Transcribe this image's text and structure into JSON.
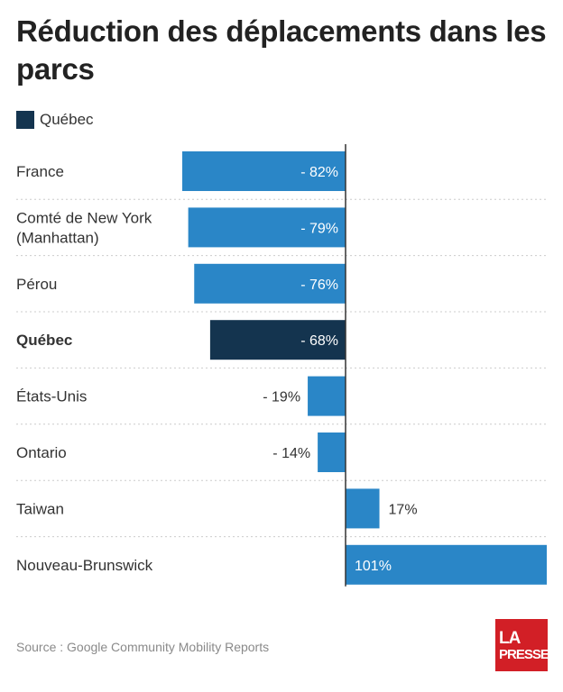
{
  "header": {
    "title": "Réduction des déplacements dans les parcs"
  },
  "legend": {
    "label": "Québec",
    "color": "#14344f"
  },
  "colors": {
    "bar": "#2a86c7",
    "highlight": "#14344f",
    "axis": "#333333",
    "separator": "#cccccc"
  },
  "chart_data": {
    "type": "bar",
    "orientation": "horizontal",
    "categories": [
      "France",
      "Comté de New York (Manhattan)",
      "Pérou",
      "Québec",
      "États-Unis",
      "Ontario",
      "Taiwan",
      "Nouveau-Brunswick"
    ],
    "values": [
      -82,
      -79,
      -76,
      -68,
      -19,
      -14,
      17,
      101
    ],
    "value_labels": [
      "- 82%",
      "- 79%",
      "- 76%",
      "- 68%",
      "- 19%",
      "- 14%",
      "17%",
      "101%"
    ],
    "highlight": "Québec",
    "xlim": [
      -82,
      101
    ],
    "grid": false
  },
  "footer": {
    "source": "Source : Google Community Mobility Reports"
  },
  "logo": {
    "line1": "LA",
    "line2": "PRESSE"
  }
}
